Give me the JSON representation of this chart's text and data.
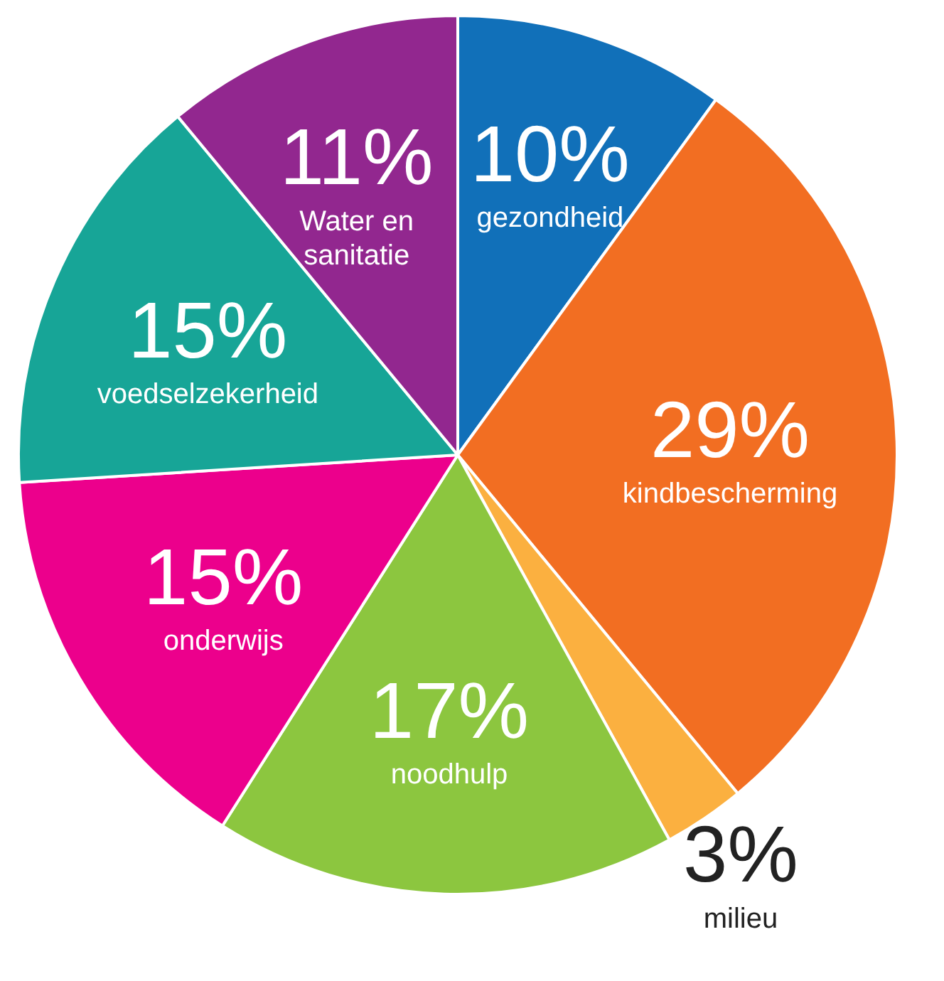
{
  "chart_data": {
    "type": "pie",
    "categories": [
      "gezondheid",
      "kindbescherming",
      "milieu",
      "noodhulp",
      "onderwijs",
      "voedselzekerheid",
      "Water en sanitatie"
    ],
    "values": [
      10,
      29,
      3,
      17,
      15,
      15,
      11
    ],
    "value_labels": [
      "10%",
      "29%",
      "3%",
      "17%",
      "15%",
      "15%",
      "11%"
    ],
    "colors": [
      "#1170b9",
      "#f26e22",
      "#fbb040",
      "#8cc63f",
      "#ec008c",
      "#17a597",
      "#92278f"
    ],
    "legend": false
  }
}
